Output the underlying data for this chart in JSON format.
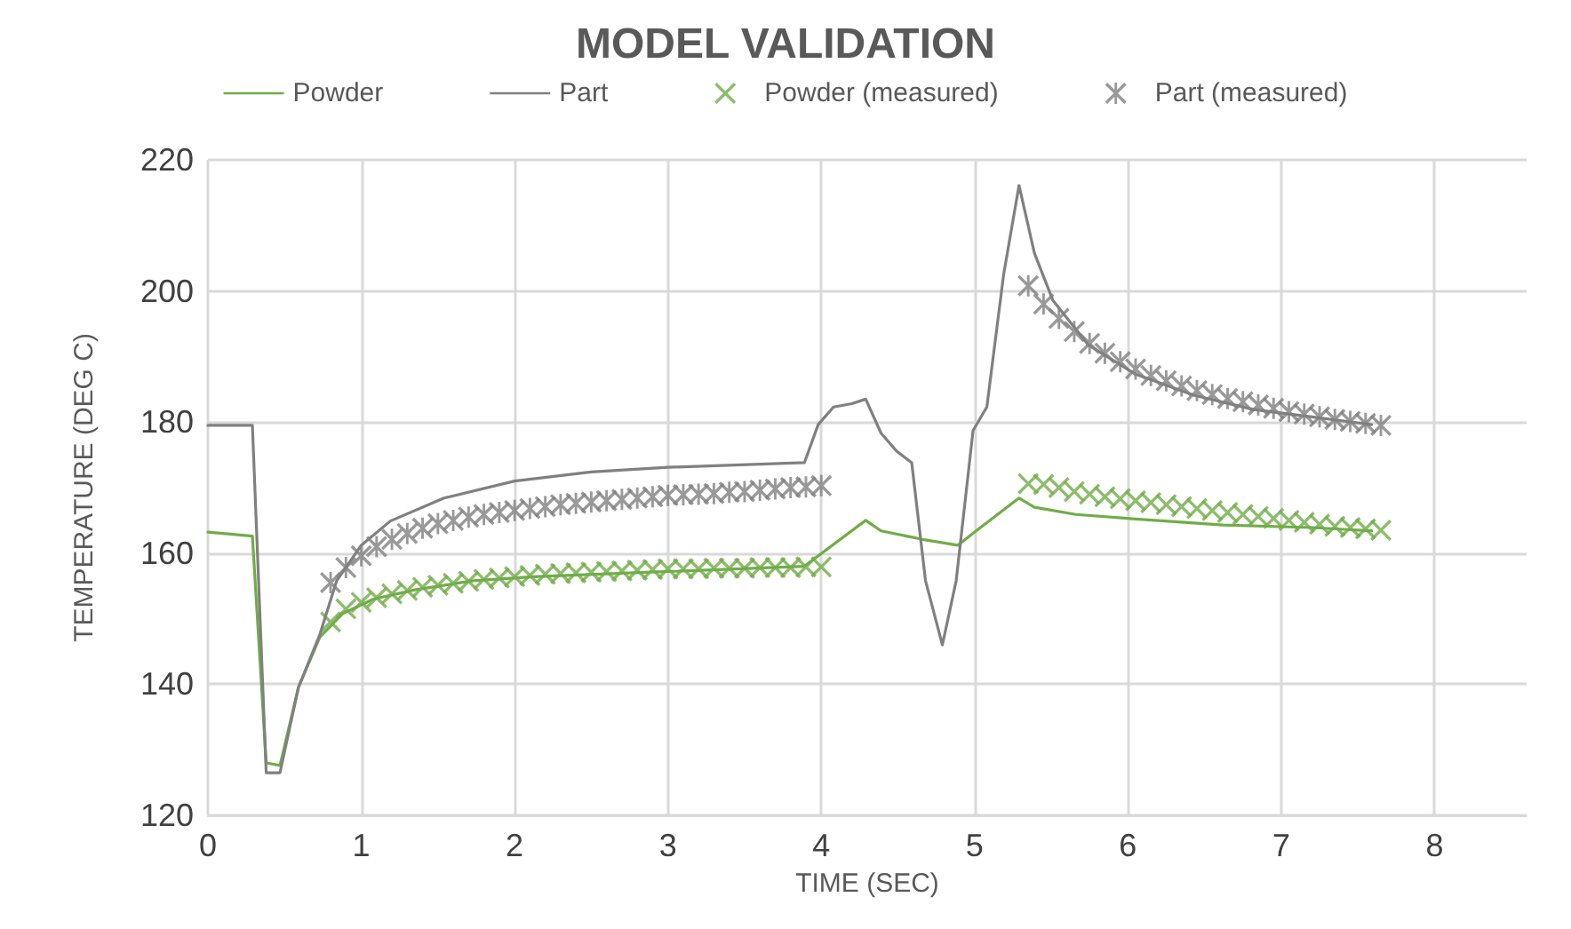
{
  "chart_data": {
    "type": "line",
    "title": "MODEL VALIDATION",
    "xlabel": "TIME (SEC)",
    "ylabel": "TEMPERATURE (DEG C)",
    "xlim": [
      0,
      8.6
    ],
    "xticks": [
      0,
      1,
      2,
      3,
      4,
      5,
      6,
      7,
      8
    ],
    "ylim": [
      120,
      220
    ],
    "yticks": [
      120,
      140,
      160,
      180,
      200,
      220
    ],
    "grid": true,
    "legend": "top",
    "series": [
      {
        "name": "Powder",
        "color": "#70ad47",
        "marker": "none",
        "line_style": "solid",
        "x": [
          0,
          0.29,
          0.38,
          0.47,
          0.59,
          0.73,
          0.88,
          1.08,
          1.35,
          1.73,
          2.12,
          2.89,
          3.89,
          4.29,
          4.39,
          4.66,
          4.89,
          5.01,
          5.29,
          5.39,
          5.66,
          6.05,
          6.62,
          7.2,
          7.59
        ],
        "values": [
          163.2,
          162.6,
          128,
          127.6,
          139.5,
          147.2,
          150.8,
          153,
          154.4,
          155.8,
          156.4,
          157.1,
          158,
          165,
          163.4,
          162.1,
          161.2,
          163.4,
          168.4,
          167,
          165.9,
          165.2,
          164.3,
          163.9,
          163.4
        ]
      },
      {
        "name": "Part",
        "color": "#808080",
        "marker": "none",
        "line_style": "solid",
        "x": [
          0,
          0.29,
          0.38,
          0.47,
          0.59,
          0.73,
          0.84,
          1.0,
          1.19,
          1.54,
          2.0,
          2.5,
          3.0,
          3.89,
          3.98,
          4.08,
          4.2,
          4.29,
          4.39,
          4.49,
          4.59,
          4.68,
          4.79,
          4.88,
          4.99,
          5.08,
          5.19,
          5.29,
          5.39,
          5.51,
          5.74,
          6.05,
          6.43,
          6.82,
          7.2,
          7.59
        ],
        "values": [
          179.5,
          179.5,
          126.5,
          126.5,
          139.5,
          147.6,
          155.8,
          161.2,
          164.9,
          168.4,
          171,
          172.4,
          173.1,
          173.8,
          179.6,
          182.3,
          182.8,
          183.5,
          178.3,
          175.6,
          173.8,
          155.8,
          146,
          155.8,
          178.7,
          182.3,
          202.6,
          216.1,
          205.8,
          198.6,
          191.8,
          187.3,
          184.1,
          181.9,
          180.8,
          179.6
        ]
      },
      {
        "name": "Powder (measured)",
        "type": "scatter",
        "color": "#70ad47",
        "marker": "cross",
        "x": [
          0.8,
          0.9,
          1.0,
          1.1,
          1.2,
          1.3,
          1.4,
          1.5,
          1.6,
          1.7,
          1.8,
          1.9,
          2.0,
          2.1,
          2.2,
          2.3,
          2.4,
          2.5,
          2.6,
          2.7,
          2.8,
          2.9,
          3.0,
          3.1,
          3.2,
          3.3,
          3.4,
          3.5,
          3.6,
          3.7,
          3.8,
          3.9,
          4.0,
          5.35,
          5.45,
          5.55,
          5.65,
          5.75,
          5.85,
          5.95,
          6.05,
          6.15,
          6.25,
          6.35,
          6.45,
          6.55,
          6.65,
          6.75,
          6.85,
          6.95,
          7.05,
          7.15,
          7.25,
          7.35,
          7.45,
          7.55,
          7.65
        ],
        "values": [
          149.5,
          151.5,
          152.5,
          153.2,
          153.8,
          154.3,
          154.8,
          155.1,
          155.4,
          155.7,
          156,
          156.2,
          156.4,
          156.6,
          156.8,
          156.9,
          157,
          157.1,
          157.2,
          157.3,
          157.4,
          157.5,
          157.6,
          157.6,
          157.6,
          157.7,
          157.7,
          157.7,
          157.8,
          157.8,
          157.8,
          157.9,
          157.9,
          170.6,
          170.5,
          170,
          169.4,
          169,
          168.6,
          168.3,
          168,
          167.7,
          167.4,
          167.1,
          166.8,
          166.5,
          166.2,
          165.9,
          165.6,
          165.3,
          165,
          164.7,
          164.4,
          164.1,
          163.9,
          163.7,
          163.5
        ]
      },
      {
        "name": "Part (measured)",
        "type": "scatter",
        "color": "#808080",
        "marker": "star",
        "x": [
          0.8,
          0.9,
          1.0,
          1.1,
          1.2,
          1.3,
          1.4,
          1.5,
          1.6,
          1.7,
          1.8,
          1.9,
          2.0,
          2.1,
          2.2,
          2.3,
          2.4,
          2.5,
          2.6,
          2.7,
          2.8,
          2.9,
          3.0,
          3.1,
          3.2,
          3.3,
          3.4,
          3.5,
          3.6,
          3.7,
          3.8,
          3.9,
          4.0,
          5.35,
          5.45,
          5.55,
          5.65,
          5.75,
          5.85,
          5.95,
          6.05,
          6.15,
          6.25,
          6.35,
          6.45,
          6.55,
          6.65,
          6.75,
          6.85,
          6.95,
          7.05,
          7.15,
          7.25,
          7.35,
          7.45,
          7.55,
          7.65
        ],
        "values": [
          155.5,
          157.8,
          159.6,
          161,
          162.1,
          163,
          163.8,
          164.5,
          165,
          165.5,
          165.9,
          166.2,
          166.5,
          166.8,
          167.1,
          167.4,
          167.6,
          167.8,
          168,
          168.2,
          168.4,
          168.6,
          168.8,
          168.9,
          169,
          169.1,
          169.3,
          169.4,
          169.6,
          169.8,
          170,
          170.1,
          170.3,
          200.8,
          198,
          195.8,
          193.8,
          192,
          190.5,
          189.2,
          188.1,
          187.1,
          186.3,
          185.5,
          184.8,
          184.2,
          183.6,
          183.1,
          182.6,
          182.1,
          181.6,
          181.2,
          180.8,
          180.4,
          180.1,
          179.8,
          179.5
        ]
      }
    ]
  }
}
